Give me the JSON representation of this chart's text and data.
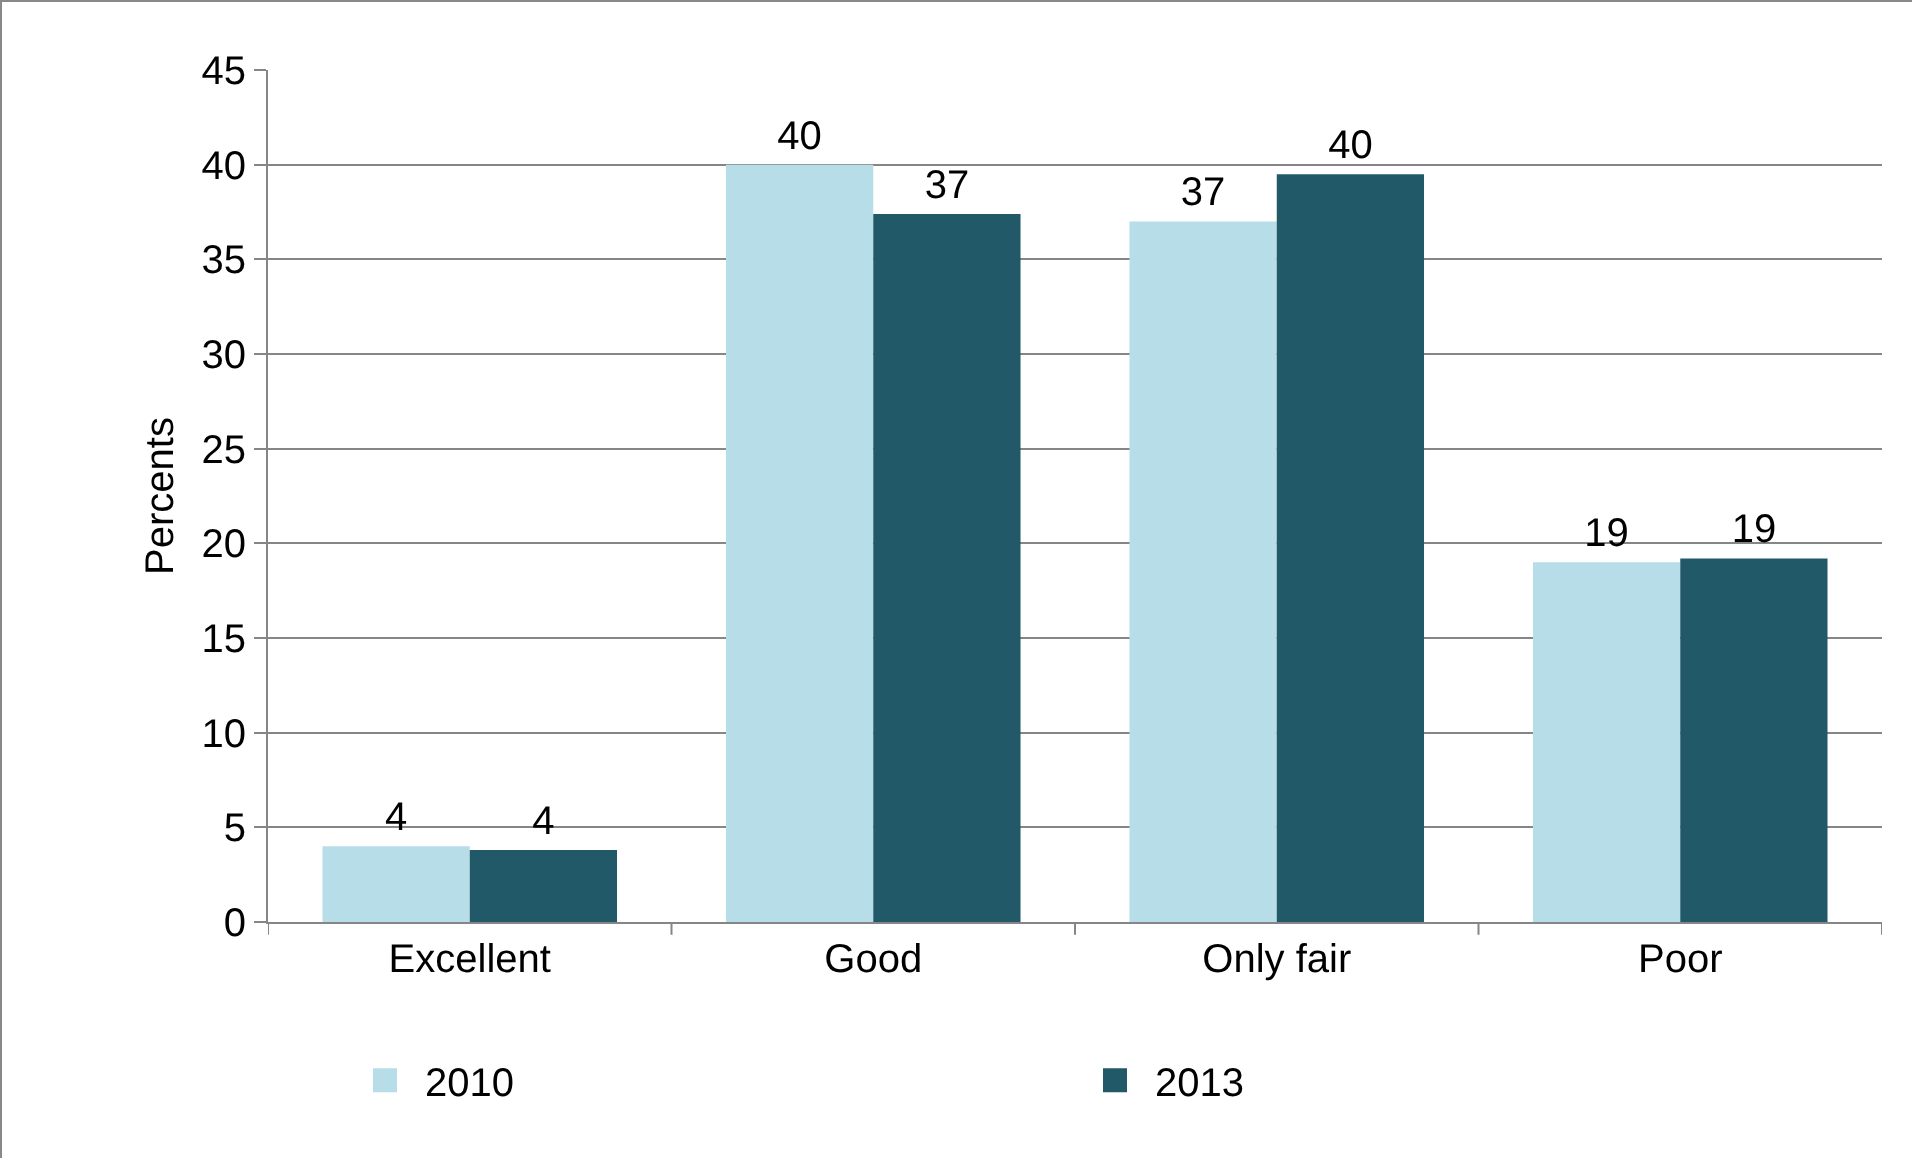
{
  "chart_data": {
    "type": "bar",
    "ylabel": "Percents",
    "categories": [
      "Excellent",
      "Good",
      "Only fair",
      "Poor"
    ],
    "series": [
      {
        "name": "2010",
        "color": "#b7dee8",
        "values": [
          4,
          40,
          37,
          19
        ],
        "value_labels": [
          "4",
          "40",
          "37",
          "19"
        ]
      },
      {
        "name": "2013",
        "color": "#215968",
        "values": [
          3.8,
          37.4,
          39.5,
          19.2
        ],
        "value_labels": [
          "4",
          "37",
          "40",
          "19"
        ]
      }
    ],
    "ylim": [
      0,
      45
    ],
    "yticks": [
      0,
      5,
      10,
      15,
      20,
      25,
      30,
      35,
      40,
      45
    ],
    "grid": "y",
    "legend": "bottom"
  }
}
